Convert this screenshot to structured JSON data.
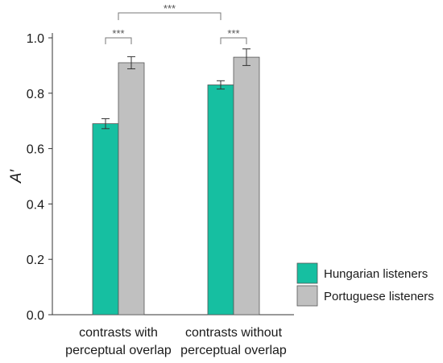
{
  "chart_data": {
    "type": "bar",
    "ylabel": "A′",
    "ylim": [
      0,
      1.0
    ],
    "yticks": [
      0.0,
      0.2,
      0.4,
      0.6,
      0.8,
      1.0
    ],
    "ytick_labels": [
      "0.0",
      "0.2",
      "0.4",
      "0.6",
      "0.8",
      "1.0"
    ],
    "categories": [
      [
        "contrasts with",
        "perceptual overlap"
      ],
      [
        "contrasts without",
        "perceptual overlap"
      ]
    ],
    "series": [
      {
        "name": "Hungarian listeners",
        "color": "#16bfa1",
        "values": [
          0.69,
          0.83
        ],
        "errors": [
          0.018,
          0.015
        ]
      },
      {
        "name": "Portuguese listeners",
        "color": "#c0c0c0",
        "values": [
          0.91,
          0.93
        ],
        "errors": [
          0.022,
          0.03
        ]
      }
    ],
    "significance": [
      {
        "label": "***",
        "type": "within",
        "category": 0
      },
      {
        "label": "***",
        "type": "within",
        "category": 1
      },
      {
        "label": "***",
        "type": "between",
        "from": 0,
        "to": 1
      }
    ],
    "legend_placement": "bottom-right",
    "grid": false
  }
}
